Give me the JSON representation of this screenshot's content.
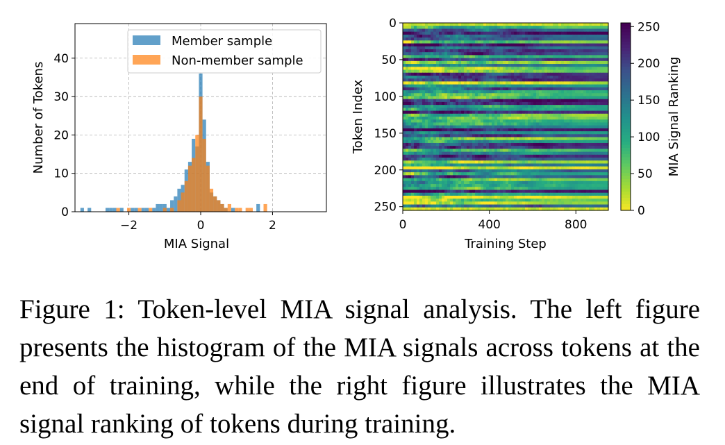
{
  "chart_data": [
    {
      "type": "histogram",
      "xlabel": "MIA Signal",
      "ylabel": "Number of Tokens",
      "xlim": [
        -3.5,
        3.5
      ],
      "ylim": [
        0,
        49
      ],
      "xticks": [
        -2,
        0,
        2
      ],
      "xtick_labels": [
        "−2",
        "0",
        "2"
      ],
      "yticks": [
        0,
        10,
        20,
        30,
        40
      ],
      "ytick_labels": [
        "0",
        "10",
        "20",
        "30",
        "40"
      ],
      "grid": true,
      "legend_position": "top-right",
      "bin_width": 0.1,
      "series": [
        {
          "name": "Member sample",
          "color": "#1f77b4",
          "bins": [
            {
              "x": -3.3,
              "count": 1
            },
            {
              "x": -3.1,
              "count": 1
            },
            {
              "x": -2.6,
              "count": 1
            },
            {
              "x": -2.5,
              "count": 1
            },
            {
              "x": -2.4,
              "count": 1
            },
            {
              "x": -2.2,
              "count": 1
            },
            {
              "x": -1.9,
              "count": 1
            },
            {
              "x": -1.8,
              "count": 1
            },
            {
              "x": -1.6,
              "count": 1
            },
            {
              "x": -1.5,
              "count": 1
            },
            {
              "x": -1.3,
              "count": 1
            },
            {
              "x": -1.2,
              "count": 2
            },
            {
              "x": -1.1,
              "count": 2
            },
            {
              "x": -1.0,
              "count": 2
            },
            {
              "x": -0.9,
              "count": 1
            },
            {
              "x": -0.8,
              "count": 3
            },
            {
              "x": -0.7,
              "count": 4
            },
            {
              "x": -0.6,
              "count": 6
            },
            {
              "x": -0.5,
              "count": 7
            },
            {
              "x": -0.4,
              "count": 11
            },
            {
              "x": -0.3,
              "count": 13
            },
            {
              "x": -0.2,
              "count": 19
            },
            {
              "x": -0.1,
              "count": 17
            },
            {
              "x": 0.0,
              "count": 36
            },
            {
              "x": 0.1,
              "count": 24
            },
            {
              "x": 0.2,
              "count": 13
            },
            {
              "x": 0.3,
              "count": 5
            },
            {
              "x": 0.4,
              "count": 4
            },
            {
              "x": 0.5,
              "count": 3
            },
            {
              "x": 0.6,
              "count": 2
            },
            {
              "x": 0.7,
              "count": 1
            },
            {
              "x": 0.9,
              "count": 1
            },
            {
              "x": 1.6,
              "count": 2
            }
          ]
        },
        {
          "name": "Non-member sample",
          "color": "#ff7f0e",
          "bins": [
            {
              "x": -2.3,
              "count": 1
            },
            {
              "x": -2.0,
              "count": 1
            },
            {
              "x": -1.7,
              "count": 1
            },
            {
              "x": -1.4,
              "count": 1
            },
            {
              "x": -1.0,
              "count": 1
            },
            {
              "x": -0.8,
              "count": 1
            },
            {
              "x": -0.6,
              "count": 3
            },
            {
              "x": -0.5,
              "count": 5
            },
            {
              "x": -0.4,
              "count": 8
            },
            {
              "x": -0.3,
              "count": 12
            },
            {
              "x": -0.2,
              "count": 14
            },
            {
              "x": -0.1,
              "count": 20
            },
            {
              "x": 0.0,
              "count": 30
            },
            {
              "x": 0.1,
              "count": 19
            },
            {
              "x": 0.2,
              "count": 12
            },
            {
              "x": 0.3,
              "count": 6
            },
            {
              "x": 0.4,
              "count": 4
            },
            {
              "x": 0.5,
              "count": 3
            },
            {
              "x": 0.6,
              "count": 2
            },
            {
              "x": 0.7,
              "count": 1
            },
            {
              "x": 0.8,
              "count": 2
            },
            {
              "x": 1.0,
              "count": 1
            },
            {
              "x": 1.1,
              "count": 1
            },
            {
              "x": 1.3,
              "count": 1
            },
            {
              "x": 1.4,
              "count": 1
            },
            {
              "x": 1.8,
              "count": 2
            }
          ]
        }
      ]
    },
    {
      "type": "heatmap",
      "xlabel": "Training Step",
      "ylabel": "Token Index",
      "xlim": [
        0,
        950
      ],
      "ylim": [
        255,
        0
      ],
      "xticks": [
        0,
        400,
        800
      ],
      "xtick_labels": [
        "0",
        "400",
        "800"
      ],
      "yticks": [
        0,
        50,
        100,
        150,
        200,
        250
      ],
      "ytick_labels": [
        "0",
        "50",
        "100",
        "150",
        "200",
        "250"
      ],
      "colorbar": {
        "label": "MIA Signal Ranking",
        "range": [
          0,
          255
        ],
        "ticks": [
          0,
          50,
          100,
          150,
          200,
          250
        ],
        "tick_labels": [
          "0",
          "50",
          "100",
          "150",
          "200",
          "250"
        ],
        "colormap": "viridis_r"
      },
      "description_grid": {
        "rows": 256,
        "steps": 950
      }
    }
  ],
  "caption": "Figure 1: Token-level MIA signal analysis. The left figure presents the histogram of the MIA signals across tokens at the end of training, while the right figure illustrates the MIA signal ranking of tokens during training."
}
